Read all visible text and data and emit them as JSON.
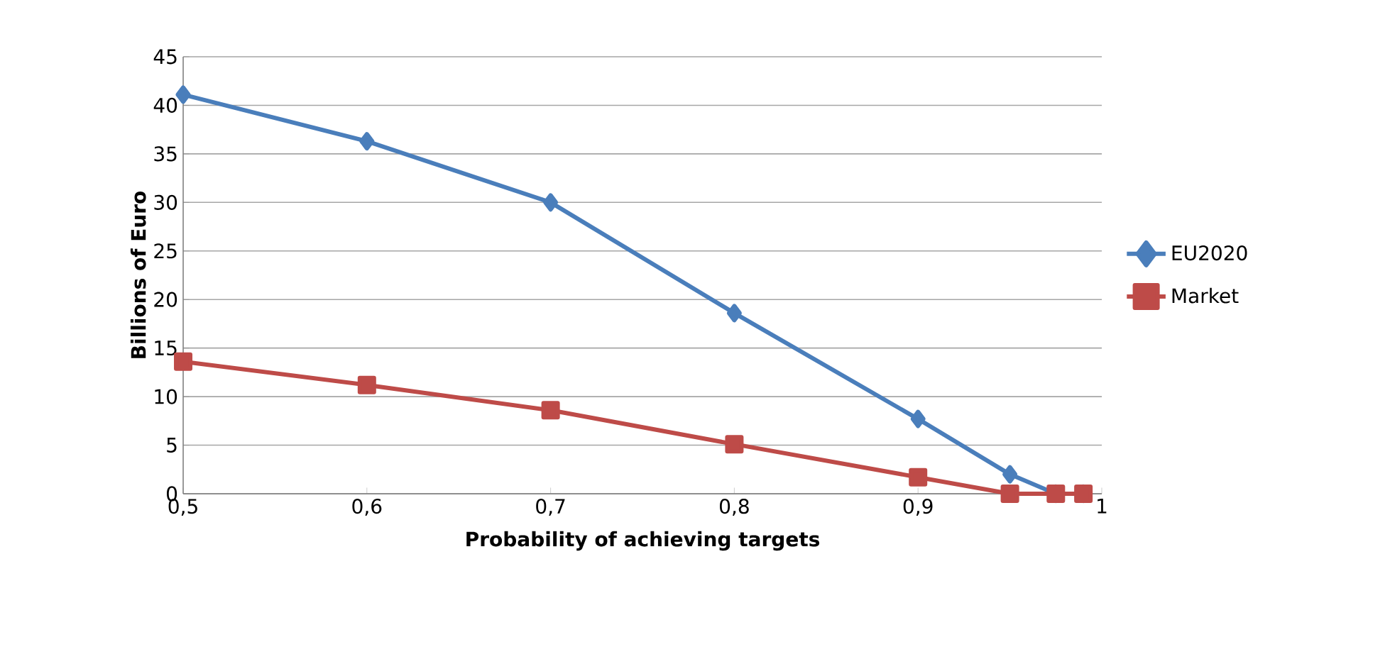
{
  "chart_data": {
    "type": "line",
    "xlabel": "Probability of achieving targets",
    "ylabel": "Billions of Euro",
    "xlim": [
      0.5,
      1
    ],
    "xticks": [
      {
        "value": 0.5,
        "label": "0,5"
      },
      {
        "value": 0.6,
        "label": "0,6"
      },
      {
        "value": 0.7,
        "label": "0,7"
      },
      {
        "value": 0.8,
        "label": "0,8"
      },
      {
        "value": 0.9,
        "label": "0,9"
      },
      {
        "value": 1,
        "label": "1"
      }
    ],
    "ylim": [
      0,
      45
    ],
    "yticks": [
      0,
      5,
      10,
      15,
      20,
      25,
      30,
      35,
      40,
      45
    ],
    "x": [
      0.5,
      0.6,
      0.7,
      0.8,
      0.9,
      0.95,
      0.975,
      0.99
    ],
    "series": [
      {
        "name": "EU2020",
        "color": "#4a7ebb",
        "marker": "diamond",
        "values": [
          41.1,
          36.3,
          30.0,
          18.6,
          7.7,
          2.0,
          0,
          0
        ]
      },
      {
        "name": "Market",
        "color": "#be4b48",
        "marker": "square",
        "values": [
          13.6,
          11.2,
          8.6,
          5.1,
          1.7,
          0,
          0,
          0
        ]
      }
    ],
    "grid": "y",
    "legend": "right",
    "line_style": "solid"
  }
}
